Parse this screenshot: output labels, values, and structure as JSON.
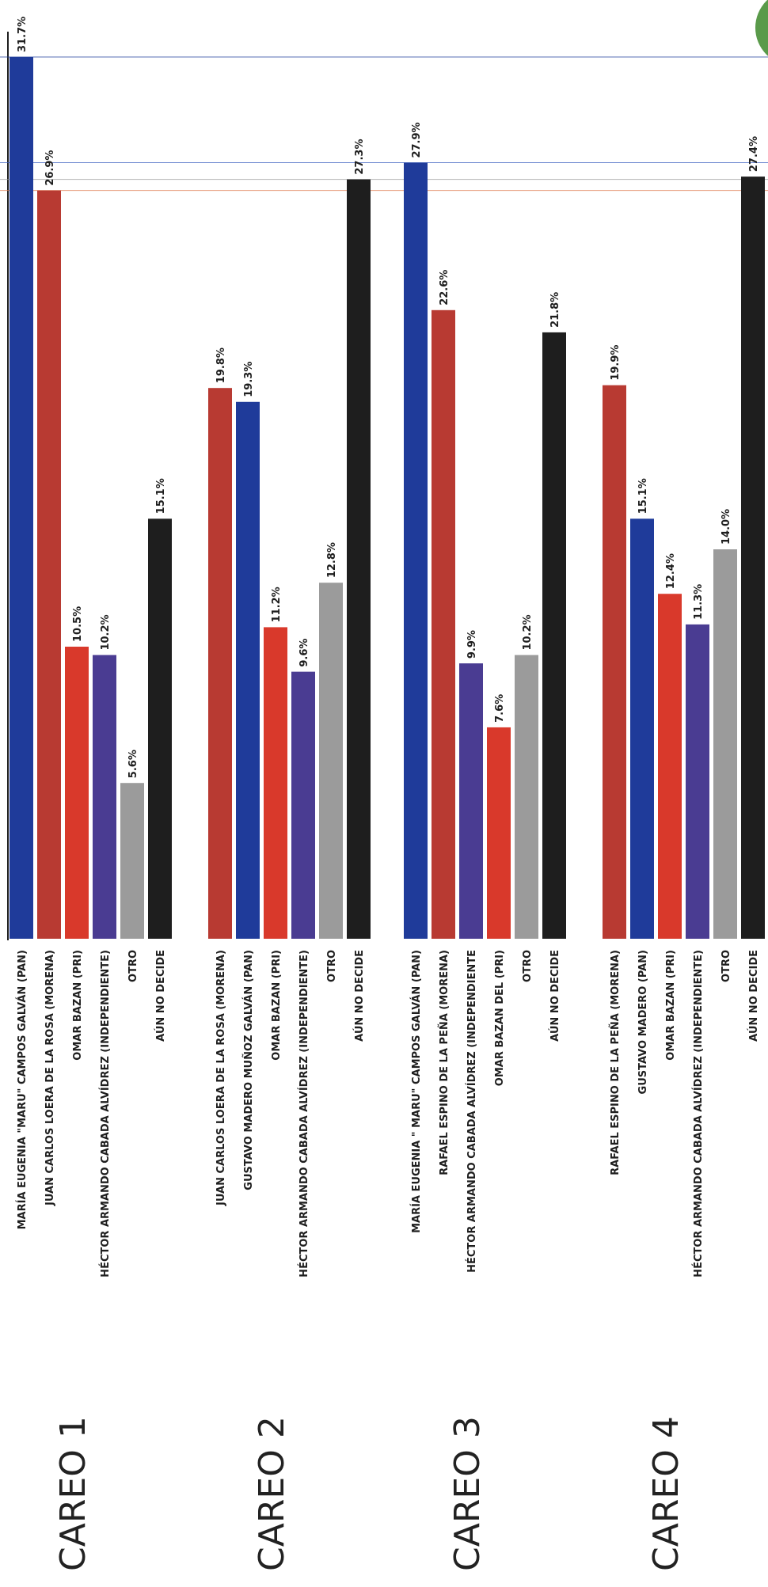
{
  "chart_data": {
    "type": "bar",
    "orientation": "rotated (bars vertical, labels read bottom-to-top)",
    "value_unit": "%",
    "value_range": [
      0,
      31.7
    ],
    "reference_lines": [
      {
        "value": 31.7,
        "color": "#1f3b9a"
      },
      {
        "value": 27.9,
        "color": "#3b5fc0"
      },
      {
        "value": 27.3,
        "color": "#9a9a9a"
      },
      {
        "value": 26.9,
        "color": "#e07a50"
      }
    ],
    "colors": {
      "PAN": "#1f3b9a",
      "MORENA_dark": "#a83232",
      "PRI": "#d9392b",
      "INDEPENDIENTE": "#4a3c92",
      "OTRO": "#9b9b9b",
      "NO_DECIDE": "#1e1e1e",
      "badge": "#5a9a4a"
    },
    "groups": [
      {
        "title": "CAREO 1",
        "bars": [
          {
            "label": "MARÍA EUGENIA \"MARU\" CAMPOS  GALVÁN (PAN)",
            "value": 31.7,
            "value_label": "31.7%",
            "color": "#1f3b9a"
          },
          {
            "label": "JUAN CARLOS LOERA DE LA ROSA (MORENA)",
            "value": 26.9,
            "value_label": "26.9%",
            "color": "#b83a32"
          },
          {
            "label": "OMAR BAZAN (PRI)",
            "value": 10.5,
            "value_label": "10.5%",
            "color": "#d9392b"
          },
          {
            "label": "HÉCTOR ARMANDO CABADA ALVÍDREZ (INDEPENDIENTE)",
            "value": 10.2,
            "value_label": "10.2%",
            "color": "#4a3c92"
          },
          {
            "label": "OTRO",
            "value": 5.6,
            "value_label": "5.6%",
            "color": "#9b9b9b"
          },
          {
            "label": "AÚN NO DECIDE",
            "value": 15.1,
            "value_label": "15.1%",
            "color": "#1e1e1e"
          }
        ]
      },
      {
        "title": "CAREO 2",
        "bars": [
          {
            "label": "JUAN CARLOS LOERA DE LA ROSA (MORENA)",
            "value": 19.8,
            "value_label": "19.8%",
            "color": "#b83a32"
          },
          {
            "label": "GUSTAVO MADERO MUÑOZ  GALVÁN (PAN)",
            "value": 19.3,
            "value_label": "19.3%",
            "color": "#1f3b9a"
          },
          {
            "label": "OMAR BAZAN (PRI)",
            "value": 11.2,
            "value_label": "11.2%",
            "color": "#d9392b"
          },
          {
            "label": "HÉCTOR ARMANDO CABADA ALVÍDREZ (INDEPENDIENTE)",
            "value": 9.6,
            "value_label": "9.6%",
            "color": "#4a3c92"
          },
          {
            "label": "OTRO",
            "value": 12.8,
            "value_label": "12.8%",
            "color": "#9b9b9b"
          },
          {
            "label": "AÚN NO DECIDE",
            "value": 27.3,
            "value_label": "27.3%",
            "color": "#1e1e1e"
          }
        ]
      },
      {
        "title": "CAREO 3",
        "bars": [
          {
            "label": "MARÍA EUGENIA \" MARU\" CAMPOS  GALVÁN  (PAN)",
            "value": 27.9,
            "value_label": "27.9%",
            "color": "#1f3b9a"
          },
          {
            "label": "RAFAEL ESPINO DE LA PEÑA (MORENA)",
            "value": 22.6,
            "value_label": "22.6%",
            "color": "#b83a32"
          },
          {
            "label": "HÉCTOR ARMANDO CABADA ALVÍDREZ (INDEPENDIENTE",
            "value": 9.9,
            "value_label": "9.9%",
            "color": "#4a3c92"
          },
          {
            "label": "OMAR BAZAN DEL (PRI)",
            "value": 7.6,
            "value_label": "7.6%",
            "color": "#d9392b"
          },
          {
            "label": "OTRO",
            "value": 10.2,
            "value_label": "10.2%",
            "color": "#9b9b9b"
          },
          {
            "label": "AÚN NO DECIDE",
            "value": 21.8,
            "value_label": "21.8%",
            "color": "#1e1e1e"
          }
        ]
      },
      {
        "title": "CAREO 4",
        "bars": [
          {
            "label": "RAFAEL ESPINO DE LA PEÑA (MORENA)",
            "value": 19.9,
            "value_label": "19.9%",
            "color": "#b83a32"
          },
          {
            "label": "GUSTAVO MADERO (PAN)",
            "value": 15.1,
            "value_label": "15.1%",
            "color": "#1f3b9a"
          },
          {
            "label": "OMAR BAZAN (PRI)",
            "value": 12.4,
            "value_label": "12.4%",
            "color": "#d9392b"
          },
          {
            "label": "HÉCTOR ARMANDO CABADA ALVÍDREZ (INDEPENDIENTE)",
            "value": 11.3,
            "value_label": "11.3%",
            "color": "#4a3c92"
          },
          {
            "label": "OTRO",
            "value": 14.0,
            "value_label": "14.0%",
            "color": "#9b9b9b"
          },
          {
            "label": "AÚN NO DECIDE",
            "value": 27.4,
            "value_label": "27.4%",
            "color": "#1e1e1e"
          }
        ]
      }
    ]
  }
}
